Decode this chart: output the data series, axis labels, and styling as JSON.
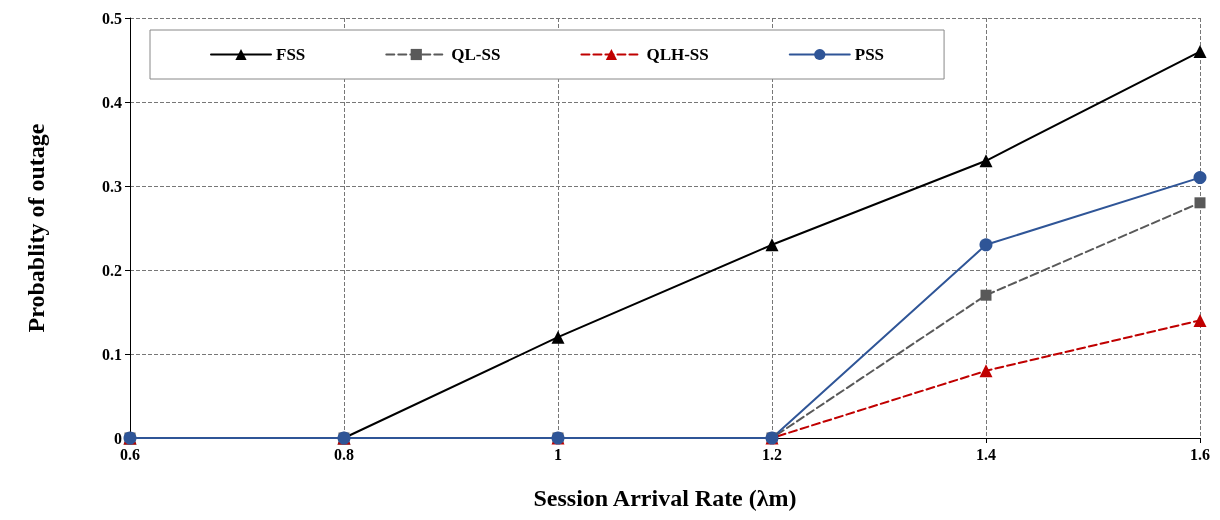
{
  "chart_data": {
    "type": "line",
    "xlabel": "Session Arrival Rate (λm)",
    "ylabel": "Probablity of outage",
    "x": [
      0.6,
      0.8,
      1,
      1.2,
      1.4,
      1.6
    ],
    "xlim": [
      0.6,
      1.6
    ],
    "xticks": [
      0.6,
      0.8,
      1,
      1.2,
      1.4,
      1.6
    ],
    "ylim": [
      0,
      0.5
    ],
    "yticks": [
      0,
      0.1,
      0.2,
      0.3,
      0.4,
      0.5
    ],
    "grid": true,
    "legend": "top",
    "series": [
      {
        "name": "FSS",
        "color": "#000000",
        "marker": "triangle",
        "line_style": "solid",
        "values": [
          0,
          0,
          0.12,
          0.23,
          0.33,
          0.46
        ]
      },
      {
        "name": "QL-SS",
        "color": "#595959",
        "marker": "square",
        "line_style": "dashed",
        "values": [
          0,
          0,
          0,
          0,
          0.17,
          0.28
        ]
      },
      {
        "name": "QLH-SS",
        "color": "#c00000",
        "marker": "triangle",
        "line_style": "dashed",
        "values": [
          0,
          0,
          0,
          0,
          0.08,
          0.14
        ]
      },
      {
        "name": "PSS",
        "color": "#2f5597",
        "marker": "circle",
        "line_style": "solid",
        "values": [
          0,
          0,
          0,
          0,
          0.23,
          0.31
        ]
      }
    ]
  }
}
